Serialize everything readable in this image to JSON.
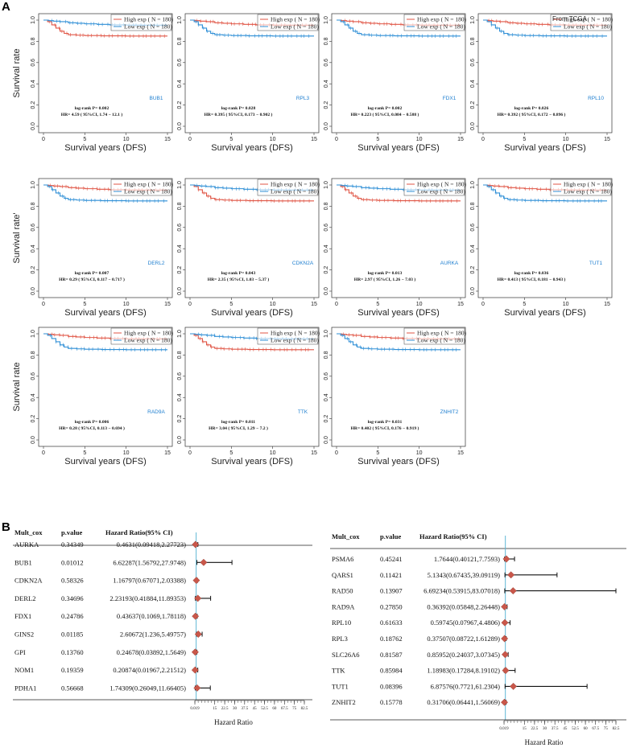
{
  "panel_labels": [
    "A",
    "B"
  ],
  "chart_data": [
    {
      "type": "line",
      "gene": "BUB1",
      "top_curve": "low",
      "logrank": "log-rank P= 0.002",
      "hr": "HR= 4.59 ( 95%CI, 1.74 − 12.1 )"
    },
    {
      "type": "line",
      "gene": "RPL3",
      "top_curve": "high",
      "logrank": "log-rank P= 0.028",
      "hr": "HR= 0.395 ( 95%CI, 0.173 − 0.902 )"
    },
    {
      "type": "line",
      "gene": "FDX1",
      "top_curve": "high",
      "logrank": "log-rank P= 0.002",
      "hr": "HR= 0.223 ( 95%CI, 0.084 − 0.588 )"
    },
    {
      "type": "line",
      "gene": "RPL10",
      "top_curve": "high",
      "logrank": "log-rank P= 0.026",
      "hr": "HR= 0.392 ( 95%CI, 0.172 − 0.896 )",
      "source": "From TCGA"
    },
    {
      "type": "line",
      "gene": "DERL2",
      "top_curve": "high",
      "logrank": "log-rank P= 0.007",
      "hr": "HR= 0.29 ( 95%CI, 0.117 − 0.717 )"
    },
    {
      "type": "line",
      "gene": "CDKN2A",
      "top_curve": "low",
      "logrank": "log-rank P= 0.043",
      "hr": "HR= 2.35 ( 95%CI, 1.03 − 5.37 )"
    },
    {
      "type": "line",
      "gene": "AURKA",
      "top_curve": "low",
      "logrank": "log-rank P= 0.013",
      "hr": "HR= 2.97 ( 95%CI, 1.26 − 7.03 )"
    },
    {
      "type": "line",
      "gene": "TUT1",
      "top_curve": "high",
      "logrank": "log-rank P= 0.036",
      "hr": "HR= 0.413 ( 95%CI, 0.181 − 0.943 )"
    },
    {
      "type": "line",
      "gene": "RAD9A",
      "top_curve": "high",
      "logrank": "log-rank P= 0.006",
      "hr": "HR= 0.28 ( 95%CI, 0.113 − 0.694 )"
    },
    {
      "type": "line",
      "gene": "TTK",
      "top_curve": "low",
      "logrank": "log-rank P= 0.011",
      "hr": "HR= 3.04 ( 95%CI, 1.29 − 7.2 )"
    },
    {
      "type": "line",
      "gene": "ZNHIT2",
      "top_curve": "high",
      "logrank": "log-rank P= 0.031",
      "hr": "HR= 0.402 ( 95%CI, 0.176 − 0.919 )"
    },
    {
      "type": "forest",
      "title": "Mult_cox",
      "columns": [
        "Mult_cox",
        "p.value",
        "Hazard Ratio(95% CI)"
      ],
      "xlabel": "Hazard Ratio",
      "xticks": [
        "0.019",
        "15",
        "22.5",
        "30",
        "37.5",
        "45",
        "52.5",
        "60",
        "67.5",
        "75",
        "82.5"
      ],
      "rows": [
        {
          "gene": "AURKA",
          "p": "0.34349",
          "text": "0.4631(0.09418,2.27723)",
          "hr": 0.4631,
          "lo": 0.09418,
          "hi": 2.27723
        },
        {
          "gene": "BUB1",
          "p": "0.01012",
          "text": "6.62287(1.56792,27.9748)",
          "hr": 6.62287,
          "lo": 1.56792,
          "hi": 27.9748
        },
        {
          "gene": "CDKN2A",
          "p": "0.58326",
          "text": "1.16797(0.67071,2.03388)",
          "hr": 1.16797,
          "lo": 0.67071,
          "hi": 2.03388
        },
        {
          "gene": "DERL2",
          "p": "0.34696",
          "text": "2.23193(0.41884,11.89353)",
          "hr": 2.23193,
          "lo": 0.41884,
          "hi": 11.89353
        },
        {
          "gene": "FDX1",
          "p": "0.24786",
          "text": "0.43637(0.1069,1.78118)",
          "hr": 0.43637,
          "lo": 0.1069,
          "hi": 1.78118
        },
        {
          "gene": "GINS2",
          "p": "0.01185",
          "text": "2.60672(1.236,5.49757)",
          "hr": 2.60672,
          "lo": 1.236,
          "hi": 5.49757
        },
        {
          "gene": "GPI",
          "p": "0.13760",
          "text": "0.24678(0.03892,1.5649)",
          "hr": 0.24678,
          "lo": 0.03892,
          "hi": 1.5649
        },
        {
          "gene": "NOM1",
          "p": "0.19359",
          "text": "0.20874(0.01967,2.21512)",
          "hr": 0.20874,
          "lo": 0.01967,
          "hi": 2.21512
        },
        {
          "gene": "PDHA1",
          "p": "0.56668",
          "text": "1.74309(0.26049,11.66405)",
          "hr": 1.74309,
          "lo": 0.26049,
          "hi": 11.66405
        }
      ]
    },
    {
      "type": "forest",
      "title": "Mult_cox",
      "columns": [
        "Mult_cox",
        "p.value",
        "Hazard Ratio(95% CI)"
      ],
      "xlabel": "Hazard Ratio",
      "xticks": [
        "0.019",
        "15",
        "22.5",
        "30",
        "37.5",
        "45",
        "52.5",
        "60",
        "67.5",
        "75",
        "82.5"
      ],
      "rows": [
        {
          "gene": "PSMA6",
          "p": "0.45241",
          "text": "1.7644(0.40121,7.7593)",
          "hr": 1.7644,
          "lo": 0.40121,
          "hi": 7.7593
        },
        {
          "gene": "QARS1",
          "p": "0.11421",
          "text": "5.1343(0.67435,39.09119)",
          "hr": 5.1343,
          "lo": 0.67435,
          "hi": 39.09119
        },
        {
          "gene": "RAD50",
          "p": "0.13907",
          "text": "6.69234(0.53915,83.07018)",
          "hr": 6.69234,
          "lo": 0.53915,
          "hi": 83.07018
        },
        {
          "gene": "RAD9A",
          "p": "0.27850",
          "text": "0.36392(0.05848,2.26448)",
          "hr": 0.36392,
          "lo": 0.05848,
          "hi": 2.26448
        },
        {
          "gene": "RPL10",
          "p": "0.61633",
          "text": "0.59745(0.07967,4.4806)",
          "hr": 0.59745,
          "lo": 0.07967,
          "hi": 4.4806
        },
        {
          "gene": "RPL3",
          "p": "0.18762",
          "text": "0.37507(0.08722,1.61289)",
          "hr": 0.37507,
          "lo": 0.08722,
          "hi": 1.61289
        },
        {
          "gene": "SLC26A6",
          "p": "0.81587",
          "text": "0.85952(0.24037,3.07345)",
          "hr": 0.85952,
          "lo": 0.24037,
          "hi": 3.07345
        },
        {
          "gene": "TTK",
          "p": "0.85984",
          "text": "1.18983(0.17284,8.19102)",
          "hr": 1.18983,
          "lo": 0.17284,
          "hi": 8.19102
        },
        {
          "gene": "TUT1",
          "p": "0.08396",
          "text": "6.87576(0.7721,61.2304)",
          "hr": 6.87576,
          "lo": 0.7721,
          "hi": 61.2304
        },
        {
          "gene": "ZNHIT2",
          "p": "0.15778",
          "text": "0.31706(0.06441,1.56069)",
          "hr": 0.31706,
          "lo": 0.06441,
          "hi": 1.56069
        }
      ]
    }
  ],
  "km_common": {
    "ylabel": "Survival rate",
    "ylabel_row2": "Survival rate'",
    "xlabel": "Survival years (DFS)",
    "xticks": [
      "0",
      "5",
      "10",
      "15"
    ],
    "yticks": [
      "0.0",
      "0.2",
      "0.4",
      "0.6",
      "0.8",
      "1.0"
    ],
    "xlim": [
      0,
      15
    ],
    "ylim": [
      0,
      1
    ],
    "legend_high": "High exp ( N = 180)",
    "legend_low": "Low exp ( N = 180)",
    "colors": {
      "high": "#e05545",
      "low": "#2f8fd6",
      "diamond": "#c9574a",
      "refline": "#5fb7d5"
    }
  }
}
